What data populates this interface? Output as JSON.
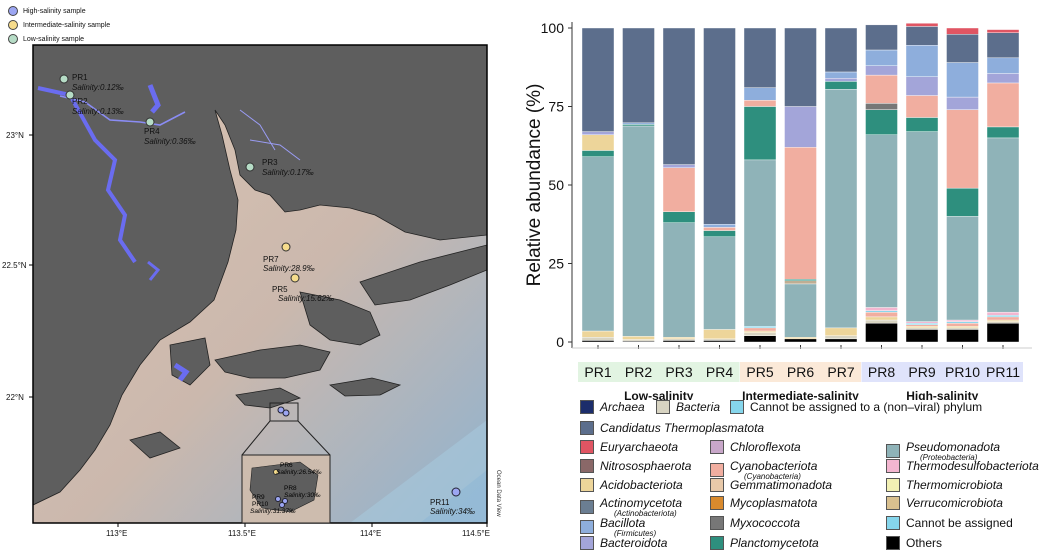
{
  "map": {
    "legend": [
      {
        "label": "High-salinity sample",
        "color": "#9ca6f2"
      },
      {
        "label": "Intermediate-salinity sample",
        "color": "#f6dc8c"
      },
      {
        "label": "Low-salinity sample",
        "color": "#b6dcc6"
      }
    ],
    "x_ticks": [
      "113°E",
      "113.5°E",
      "114°E",
      "114.5°E"
    ],
    "y_ticks": [
      "23°N",
      "22.5°N",
      "22°N"
    ],
    "watermark": "Ocean Data View",
    "sites": [
      {
        "id": "PR1",
        "salinity": "Salinity:0.12‰",
        "group": "low"
      },
      {
        "id": "PR2",
        "salinity": "Salinity:0.13‰",
        "group": "low"
      },
      {
        "id": "PR4",
        "salinity": "Salinity:0.36‰",
        "group": "low"
      },
      {
        "id": "PR3",
        "salinity": "Salinity:0.17‰",
        "group": "low"
      },
      {
        "id": "PR7",
        "salinity": "Salinity:28.9‰",
        "group": "intermediate"
      },
      {
        "id": "PR5",
        "salinity": "Salinity:15.62‰",
        "group": "intermediate"
      },
      {
        "id": "PR11",
        "salinity": "Salinity:34‰",
        "group": "high"
      }
    ],
    "inset_sites": [
      {
        "id": "PR6",
        "salinity": "Salinity:26.54‰"
      },
      {
        "id": "PR8",
        "salinity": "Salinity:30‰"
      },
      {
        "id": "PR9",
        "salinity": ""
      },
      {
        "id": "PR10",
        "salinity": "Salinity:31.37‰"
      }
    ]
  },
  "chart_data": {
    "type": "bar",
    "stacked": true,
    "ylabel": "Relative abundance (%)",
    "xlabel": "",
    "ylim": [
      0,
      100
    ],
    "yticks": [
      0,
      25,
      50,
      75,
      100
    ],
    "categories": [
      "PR1",
      "PR2",
      "PR3",
      "PR4",
      "PR5",
      "PR6",
      "PR7",
      "PR8",
      "PR9",
      "PR10",
      "PR11"
    ],
    "groups": [
      {
        "label": "Low-salinity",
        "members": [
          "PR1",
          "PR2",
          "PR3",
          "PR4"
        ],
        "color": "#e2f4e2"
      },
      {
        "label": "Intermediate-salinity",
        "members": [
          "PR5",
          "PR6",
          "PR7"
        ],
        "color": "#fbe9d8"
      },
      {
        "label": "High-salinity",
        "members": [
          "PR8",
          "PR9",
          "PR10",
          "PR11"
        ],
        "color": "#dfe3fb"
      }
    ],
    "series": [
      {
        "name": "Others",
        "color": "#000000",
        "values": [
          0.5,
          0.3,
          0.5,
          0.5,
          2,
          1,
          1,
          6,
          4,
          4,
          6
        ]
      },
      {
        "name": "Bacteria",
        "color": "#d8d4c2",
        "values": [
          1,
          0.5,
          0.5,
          0.5,
          1,
          0,
          1,
          1,
          0.5,
          0.5,
          0.5
        ]
      },
      {
        "name": "Acidobacteriota",
        "color": "#edd59a",
        "values": [
          2,
          1,
          0.5,
          3,
          0.5,
          0.5,
          2.5,
          1,
          0.5,
          0.5,
          0.5
        ]
      },
      {
        "name": "Cyanobacteriota (lower)",
        "color": "#f1aea0",
        "values": [
          0,
          0,
          0,
          0,
          1,
          0,
          0,
          1.5,
          0.5,
          1,
          1
        ]
      },
      {
        "name": "Cannot be assigned",
        "color": "#86d6ec",
        "values": [
          0,
          0,
          0,
          0,
          0.5,
          0,
          0,
          0.5,
          0.5,
          0.5,
          0.5
        ]
      },
      {
        "name": "Thermodesulfobacteriota",
        "color": "#f3b6d0",
        "values": [
          0,
          0,
          0,
          0,
          0,
          0,
          0,
          1,
          0.5,
          0.5,
          1
        ]
      },
      {
        "name": "Pseudomonadota",
        "color": "#8fb3b8",
        "values": [
          55.5,
          67,
          36.5,
          29.5,
          53,
          17,
          76,
          55,
          60.5,
          33,
          55.5
        ]
      },
      {
        "name": "Gemmatimonadota",
        "color": "#bfae93",
        "values": [
          0,
          0,
          0,
          0,
          0,
          1,
          0,
          0,
          0,
          0,
          0
        ]
      },
      {
        "name": "Planctomycetota",
        "color": "#2e8f7e",
        "values": [
          2,
          0.5,
          3.5,
          2,
          17,
          0.5,
          2.5,
          8,
          4.5,
          9,
          3.5
        ]
      },
      {
        "name": "Myxococcota",
        "color": "#777777",
        "values": [
          0,
          0,
          0,
          0,
          0,
          0,
          0,
          2,
          0,
          0,
          0
        ]
      },
      {
        "name": "Cyanobacteriota",
        "color": "#f1aea0",
        "values": [
          0,
          0,
          14,
          1,
          2,
          42,
          0,
          9,
          7,
          25,
          14
        ]
      },
      {
        "name": "Acidobacteriota (upper)",
        "color": "#edd59a",
        "values": [
          5,
          0,
          0,
          0,
          0,
          0,
          0,
          0,
          0,
          0,
          0
        ]
      },
      {
        "name": "Bacteroidota",
        "color": "#a3a5d9",
        "values": [
          1,
          0,
          1,
          0,
          0,
          13,
          1,
          3,
          6,
          4,
          3
        ]
      },
      {
        "name": "Bacillota",
        "color": "#8eaedc",
        "values": [
          0,
          0.5,
          0,
          1,
          4,
          0,
          2,
          5,
          10,
          11,
          5
        ]
      },
      {
        "name": "Candidatus Thermoplasmatota",
        "color": "#5c6e8c",
        "values": [
          33,
          30.2,
          43.5,
          62.5,
          19,
          25,
          14,
          8,
          6,
          9,
          8
        ]
      },
      {
        "name": "Euryarchaeota",
        "color": "#e05563",
        "values": [
          0,
          0,
          0,
          0,
          0,
          0,
          0,
          0,
          1,
          2,
          1
        ]
      }
    ]
  },
  "legend": {
    "row1": [
      {
        "name": "Archaea",
        "color": "#1c2d6b",
        "italic": true
      },
      {
        "name": "Bacteria",
        "color": "#d8d4c2",
        "italic": true
      },
      {
        "name": "Cannot be assigned to a (non–viral) phylum",
        "color": "#86d6ec",
        "italic": false
      }
    ],
    "col1": [
      {
        "name": "Candidatus Thermoplasmatota",
        "sub": "",
        "color": "#5c6e8c"
      },
      {
        "name": "Euryarchaeota",
        "sub": "",
        "color": "#e05563"
      },
      {
        "name": "Nitrososphaerota",
        "sub": "",
        "color": "#8a6868"
      },
      {
        "name": "Acidobacteriota",
        "sub": "",
        "color": "#edd59a"
      },
      {
        "name": "Actinomycetota",
        "sub": "(Actinobacteriota)",
        "color": "#6b7e92"
      },
      {
        "name": "Bacillota",
        "sub": "(Firmicutes)",
        "color": "#8eaedc"
      },
      {
        "name": "Bacteroidota",
        "sub": "",
        "color": "#a3a5d9"
      }
    ],
    "col2": [
      {
        "name": "Chloroflexota",
        "sub": "",
        "color": "#c8a7c9"
      },
      {
        "name": "Cyanobacteriota",
        "sub": "(Cyanobacteria)",
        "color": "#f1aea0"
      },
      {
        "name": "Gemmatimonadota",
        "sub": "",
        "color": "#e8c9a9"
      },
      {
        "name": "Mycoplasmatota",
        "sub": "",
        "color": "#d98a2d"
      },
      {
        "name": "Myxococcota",
        "sub": "",
        "color": "#777777"
      },
      {
        "name": "Planctomycetota",
        "sub": "",
        "color": "#2e8f7e"
      }
    ],
    "col3": [
      {
        "name": "Pseudomonadota",
        "sub": "(Proteobacteria)",
        "color": "#8fb3b8",
        "italic": true
      },
      {
        "name": "Thermodesulfobacteriota",
        "sub": "",
        "color": "#f3b6d0",
        "italic": true
      },
      {
        "name": "Thermomicrobiota",
        "sub": "",
        "color": "#f2f0b4",
        "italic": true
      },
      {
        "name": "Verrucomicrobiota",
        "sub": "",
        "color": "#d9c08f",
        "italic": true
      },
      {
        "name": "Cannot be assigned",
        "sub": "",
        "color": "#86d6ec",
        "italic": false
      },
      {
        "name": "Others",
        "sub": "",
        "color": "#000000",
        "italic": false
      }
    ]
  }
}
